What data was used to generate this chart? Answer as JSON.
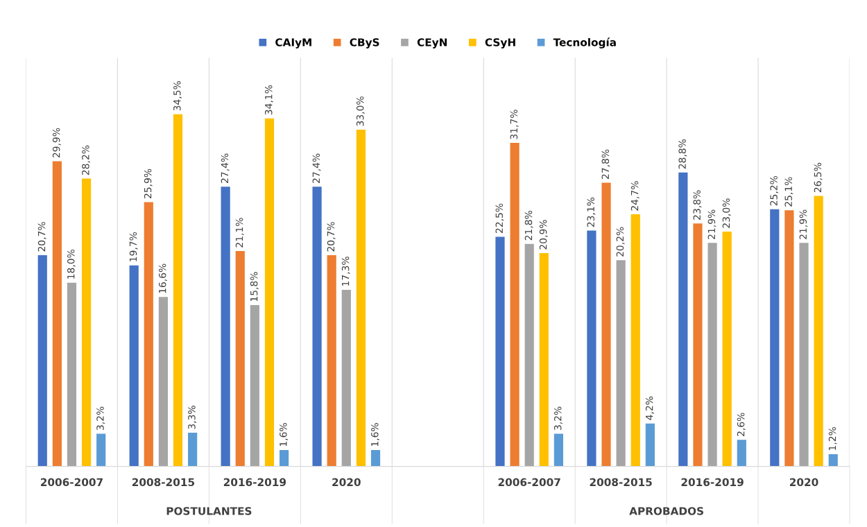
{
  "chart_data": {
    "type": "bar",
    "categories": [
      "2006-2007",
      "2008-2015",
      "2016-2019",
      "2020",
      null,
      "2006-2007",
      "2008-2015",
      "2016-2019",
      "2020"
    ],
    "series": [
      {
        "name": "CAIyM",
        "color": "#4472c4",
        "values": [
          20.7,
          19.7,
          27.4,
          27.4,
          null,
          22.5,
          23.1,
          28.8,
          25.2
        ],
        "value_labels": [
          "20,7%",
          "19,7%",
          "27,4%",
          "27,4%",
          null,
          "22,5%",
          "23,1%",
          "28,8%",
          "25,2%"
        ]
      },
      {
        "name": "CByS",
        "color": "#ed7d31",
        "values": [
          29.9,
          25.9,
          21.1,
          20.7,
          null,
          31.7,
          27.8,
          23.8,
          25.1
        ],
        "value_labels": [
          "29,9%",
          "25,9%",
          "21,1%",
          "20,7%",
          null,
          "31,7%",
          "27,8%",
          "23,8%",
          "25,1%"
        ]
      },
      {
        "name": "CEyN",
        "color": "#a5a5a5",
        "values": [
          18.0,
          16.6,
          15.8,
          17.3,
          null,
          21.8,
          20.2,
          21.9,
          21.9
        ],
        "value_labels": [
          "18,0%",
          "16,6%",
          "15,8%",
          "17,3%",
          null,
          "21,8%",
          "20,2%",
          "21,9%",
          "21,9%"
        ]
      },
      {
        "name": "CSyH",
        "color": "#ffc000",
        "values": [
          28.2,
          34.5,
          34.1,
          33.0,
          null,
          20.9,
          24.7,
          23.0,
          26.5
        ],
        "value_labels": [
          "28,2%",
          "34,5%",
          "34,1%",
          "33,0%",
          null,
          "20,9%",
          "24,7%",
          "23,0%",
          "26,5%"
        ]
      },
      {
        "name": "Tecnología",
        "color": "#5b9bd5",
        "values": [
          3.2,
          3.3,
          1.6,
          1.6,
          null,
          3.2,
          4.2,
          2.6,
          1.2
        ],
        "value_labels": [
          "3,2%",
          "3,3%",
          "1,6%",
          "1,6%",
          null,
          "3,2%",
          "4,2%",
          "2,6%",
          "1,2%"
        ]
      }
    ],
    "annotations": [
      "POSTULANTES",
      "APROBADOS"
    ],
    "grid": "x",
    "legend": "top"
  }
}
